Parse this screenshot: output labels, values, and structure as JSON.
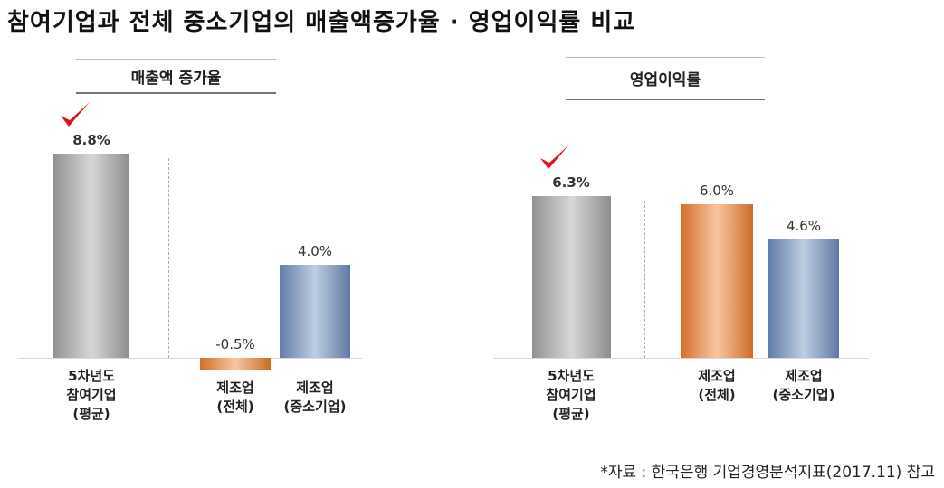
{
  "title": "참여기업과 전체 중소기업의 매출액증가율 · 영업이익률 비교",
  "source": "*자료 : 한국은행 기업경영분석지표(2017.11) 참고",
  "chart_data": [
    {
      "type": "bar",
      "title": "매출액 증가율",
      "categories": [
        [
          "5차년도",
          "참여기업",
          "(평균)"
        ],
        [
          "제조업",
          "(전체)"
        ],
        [
          "제조업",
          "(중소기업)"
        ]
      ],
      "values": [
        8.8,
        -0.5,
        4.0
      ],
      "value_labels": [
        "8.8%",
        "-0.5%",
        "4.0%"
      ],
      "colors": [
        "#a6a6a6",
        "#f07f2f",
        "#6f8fbf"
      ]
    },
    {
      "type": "bar",
      "title": "영업이익률",
      "categories": [
        [
          "5차년도",
          "참여기업",
          "(평균)"
        ],
        [
          "제조업",
          "(전체)"
        ],
        [
          "제조업",
          "(중소기업)"
        ]
      ],
      "values": [
        6.3,
        6.0,
        4.6
      ],
      "value_labels": [
        "6.3%",
        "6.0%",
        "4.6%"
      ],
      "colors": [
        "#a6a6a6",
        "#f07f2f",
        "#6f8fbf"
      ]
    }
  ]
}
